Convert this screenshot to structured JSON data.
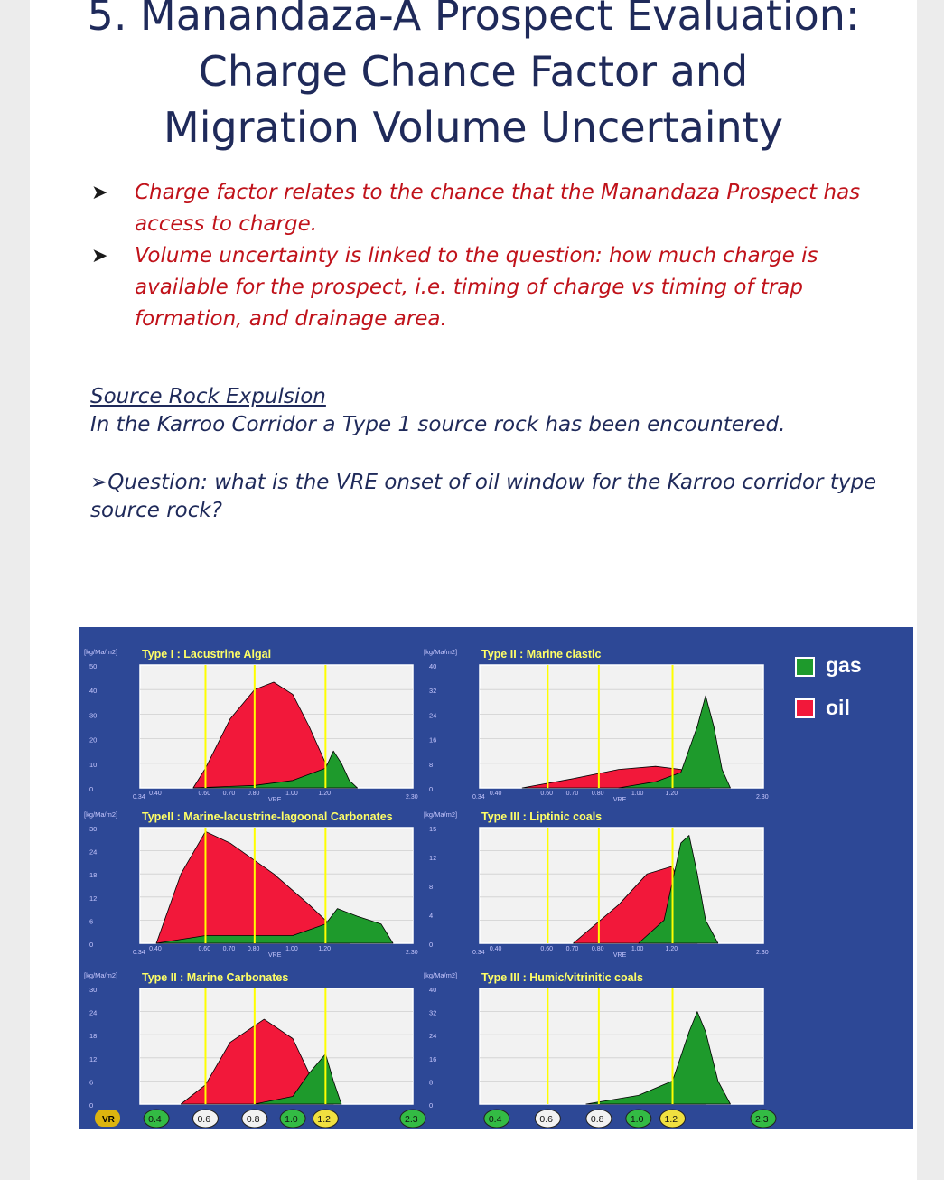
{
  "title": {
    "line1": "5. Manandaza-A Prospect Evaluation:",
    "line2": "Charge Chance Factor and",
    "line3": "Migration Volume Uncertainty"
  },
  "bullets": [
    {
      "text": "Charge factor relates to the chance that the Manandaza Prospect has access to charge."
    },
    {
      "text": "Volume uncertainty is linked to the question: how much charge is available for the prospect, i.e. timing of charge vs timing of trap formation, and drainage area."
    }
  ],
  "source_rock": {
    "heading": "Source Rock Expulsion",
    "body": "In the Karroo Corridor a Type 1 source rock has been encountered."
  },
  "question": "Question: what is the VRE onset of oil window for the Karroo corridor type source rock?",
  "colors": {
    "background": "#2d4896",
    "gas": "#1e9a2c",
    "oil": "#f2183a",
    "marker": "#ffff00",
    "plot_bg": "#f2f2f2"
  },
  "legend": {
    "gas": "gas",
    "oil": "oil"
  },
  "x_axis": {
    "label": "VRE",
    "ticks": [
      "0.34",
      "0.40",
      "0.60",
      "0.70",
      "0.80",
      "1.00",
      "1.20",
      "2.30"
    ],
    "bottom_badge": "VR",
    "circled": [
      "0.4",
      "0.6",
      "0.8",
      "1.0",
      "1.2",
      "2.3"
    ]
  },
  "chart_data": [
    {
      "type": "area",
      "title": "Type I : Lacustrine Algal",
      "ylabel": "[kg/Ma/m2]",
      "yticks": [
        "50",
        "40",
        "30",
        "20",
        "10",
        "0"
      ],
      "ylim": [
        0,
        50
      ],
      "xlabel": "VRE",
      "xlim": [
        0.34,
        2.3
      ],
      "vre_markers": [
        0.6,
        0.8,
        1.2
      ],
      "series": [
        {
          "name": "oil",
          "x": [
            0.55,
            0.6,
            0.7,
            0.8,
            0.9,
            1.0,
            1.1,
            1.2,
            1.3,
            1.4,
            1.5,
            1.6
          ],
          "y": [
            0,
            8,
            28,
            40,
            43,
            38,
            25,
            10,
            6,
            3,
            1,
            0
          ]
        },
        {
          "name": "gas",
          "x": [
            0.55,
            0.8,
            1.0,
            1.2,
            1.3,
            1.4,
            1.5,
            1.6
          ],
          "y": [
            0,
            1,
            3,
            8,
            15,
            10,
            3,
            0
          ]
        }
      ]
    },
    {
      "type": "area",
      "title": "Type II : Marine clastic",
      "ylabel": "[kg/Ma/m2]",
      "yticks": [
        "40",
        "32",
        "24",
        "16",
        "8",
        "0"
      ],
      "ylim": [
        0,
        40
      ],
      "xlabel": "VRE",
      "xlim": [
        0.34,
        2.3
      ],
      "vre_markers": [
        0.6,
        0.8,
        1.2
      ],
      "series": [
        {
          "name": "oil",
          "x": [
            0.5,
            0.7,
            0.9,
            1.1,
            1.3,
            1.5,
            1.65
          ],
          "y": [
            0,
            3,
            6,
            7,
            6,
            3,
            0
          ]
        },
        {
          "name": "gas",
          "x": [
            0.9,
            1.1,
            1.3,
            1.5,
            1.6,
            1.7,
            1.8,
            1.9
          ],
          "y": [
            0,
            2,
            5,
            20,
            30,
            20,
            6,
            0
          ]
        }
      ]
    },
    {
      "type": "area",
      "title": "TypeII : Marine-lacustrine-lagoonal Carbonates",
      "ylabel": "[kg/Ma/m2]",
      "yticks": [
        "30",
        "24",
        "18",
        "12",
        "6",
        "0"
      ],
      "ylim": [
        0,
        30
      ],
      "xlabel": "VRE",
      "xlim": [
        0.34,
        2.3
      ],
      "vre_markers": [
        0.6,
        0.8,
        1.2
      ],
      "series": [
        {
          "name": "oil",
          "x": [
            0.4,
            0.5,
            0.6,
            0.7,
            0.9,
            1.1,
            1.3,
            1.5
          ],
          "y": [
            0,
            18,
            29,
            26,
            18,
            10,
            4,
            0
          ]
        },
        {
          "name": "gas",
          "x": [
            0.4,
            0.6,
            1.0,
            1.2,
            1.35,
            1.6,
            1.9,
            2.05
          ],
          "y": [
            0,
            2,
            2,
            5,
            9,
            7,
            5,
            0
          ]
        }
      ]
    },
    {
      "type": "area",
      "title": "Type III : Liptinic coals",
      "ylabel": "[kg/Ma/m2]",
      "yticks": [
        "15",
        "12",
        "8",
        "4",
        "0"
      ],
      "ylim": [
        0,
        15
      ],
      "xlabel": "VRE",
      "xlim": [
        0.34,
        2.3
      ],
      "vre_markers": [
        0.6,
        0.8,
        1.2
      ],
      "series": [
        {
          "name": "oil",
          "x": [
            0.7,
            0.9,
            1.05,
            1.2,
            1.3,
            1.4,
            1.5
          ],
          "y": [
            0,
            5,
            9,
            10,
            7,
            3,
            0
          ]
        },
        {
          "name": "gas",
          "x": [
            1.0,
            1.15,
            1.3,
            1.4,
            1.5,
            1.6,
            1.75
          ],
          "y": [
            0,
            3,
            13,
            14,
            9,
            3,
            0
          ]
        }
      ]
    },
    {
      "type": "area",
      "title": "Type II : Marine Carbonates",
      "ylabel": "[kg/Ma/m2]",
      "yticks": [
        "30",
        "24",
        "18",
        "12",
        "6",
        "0"
      ],
      "ylim": [
        0,
        30
      ],
      "xlabel": "VRE",
      "xlim": [
        0.34,
        2.3
      ],
      "vre_markers": [
        0.6,
        0.8,
        1.2
      ],
      "series": [
        {
          "name": "oil",
          "x": [
            0.5,
            0.6,
            0.7,
            0.85,
            1.0,
            1.1,
            1.2,
            1.3
          ],
          "y": [
            0,
            5,
            16,
            22,
            17,
            8,
            2,
            0
          ]
        },
        {
          "name": "gas",
          "x": [
            0.8,
            1.0,
            1.1,
            1.2,
            1.3,
            1.4
          ],
          "y": [
            0,
            2,
            8,
            13,
            6,
            0
          ]
        }
      ]
    },
    {
      "type": "area",
      "title": "Type III : Humic/vitrinitic coals",
      "ylabel": "[kg/Ma/m2]",
      "yticks": [
        "40",
        "32",
        "24",
        "16",
        "8",
        "0"
      ],
      "ylim": [
        0,
        40
      ],
      "xlabel": "VRE",
      "xlim": [
        0.34,
        2.3
      ],
      "vre_markers": [
        0.6,
        0.8,
        1.2
      ],
      "series": [
        {
          "name": "oil",
          "x": [
            0.8,
            1.0,
            1.2,
            1.4,
            1.6
          ],
          "y": [
            0,
            1,
            2,
            1,
            0
          ]
        },
        {
          "name": "gas",
          "x": [
            0.75,
            1.0,
            1.2,
            1.4,
            1.5,
            1.6,
            1.75,
            1.9
          ],
          "y": [
            0,
            3,
            8,
            25,
            32,
            25,
            8,
            0
          ]
        }
      ]
    }
  ]
}
